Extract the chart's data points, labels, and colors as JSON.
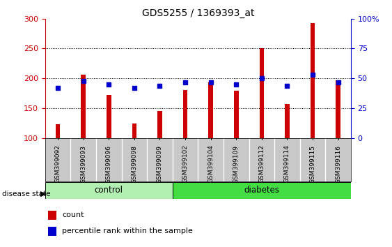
{
  "title": "GDS5255 / 1369393_at",
  "samples": [
    "GSM399092",
    "GSM399093",
    "GSM399096",
    "GSM399098",
    "GSM399099",
    "GSM399102",
    "GSM399104",
    "GSM399109",
    "GSM399112",
    "GSM399114",
    "GSM399115",
    "GSM399116"
  ],
  "counts": [
    124,
    206,
    172,
    125,
    146,
    181,
    193,
    180,
    250,
    157,
    292,
    197
  ],
  "percentiles": [
    42,
    48,
    45,
    42,
    44,
    47,
    47,
    45,
    50,
    44,
    53,
    47
  ],
  "ymin": 100,
  "ymax": 300,
  "yticks_left": [
    100,
    150,
    200,
    250,
    300
  ],
  "yticks_right": [
    0,
    25,
    50,
    75,
    100
  ],
  "bar_color": "#cc0000",
  "dot_color": "#0000cc",
  "control_count": 5,
  "diabetes_count": 7,
  "group_label_control": "control",
  "group_label_diabetes": "diabetes",
  "disease_state_label": "disease state",
  "legend_count": "count",
  "legend_percentile": "percentile rank within the sample",
  "bg_color": "#ffffff",
  "label_area_color": "#c8c8c8",
  "group_bg_control": "#b2f0b2",
  "group_bg_diabetes": "#44dd44"
}
